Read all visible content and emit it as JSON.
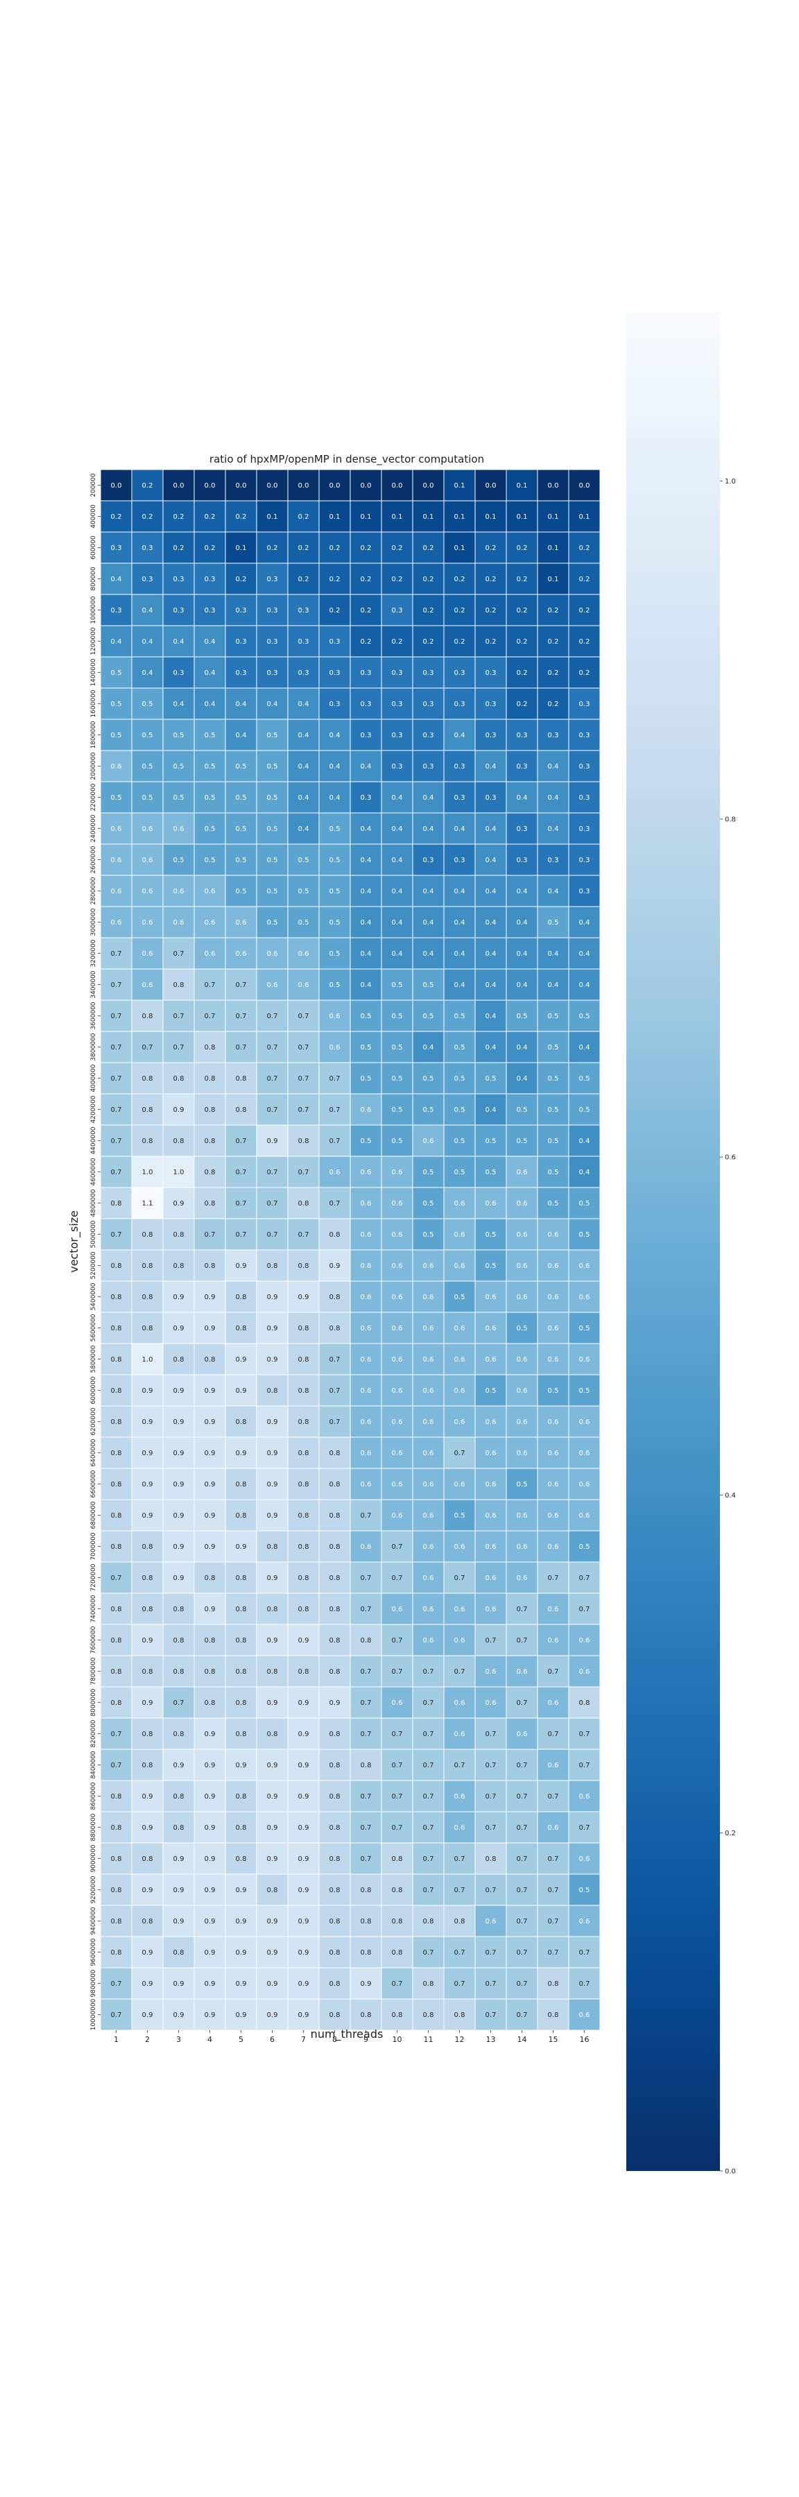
{
  "chart_data": {
    "type": "heatmap",
    "title": "ratio of hpxMP/openMP in dense_vector computation",
    "xlabel": "num_threads",
    "ylabel": "vector_size",
    "x_categories": [
      "1",
      "2",
      "3",
      "4",
      "5",
      "6",
      "7",
      "8",
      "9",
      "10",
      "11",
      "12",
      "13",
      "14",
      "15",
      "16"
    ],
    "y_categories": [
      "200000",
      "400000",
      "600000",
      "800000",
      "1000000",
      "1200000",
      "1400000",
      "1600000",
      "1800000",
      "2000000",
      "2200000",
      "2400000",
      "2600000",
      "2800000",
      "3000000",
      "3200000",
      "3400000",
      "3600000",
      "3800000",
      "4000000",
      "4200000",
      "4400000",
      "4600000",
      "4800000",
      "5000000",
      "5200000",
      "5400000",
      "5600000",
      "5800000",
      "6000000",
      "6200000",
      "6400000",
      "6600000",
      "6800000",
      "7000000",
      "7200000",
      "7400000",
      "7600000",
      "7800000",
      "8000000",
      "8200000",
      "8400000",
      "8600000",
      "8800000",
      "9000000",
      "9200000",
      "9400000",
      "9600000",
      "9800000",
      "10000000"
    ],
    "values": [
      [
        0.0,
        0.2,
        0.0,
        0.0,
        0.0,
        0.0,
        0.0,
        0.0,
        0.0,
        0.0,
        0.0,
        0.1,
        0.0,
        0.1,
        0.0,
        0.0
      ],
      [
        0.2,
        0.2,
        0.2,
        0.2,
        0.2,
        0.1,
        0.2,
        0.1,
        0.1,
        0.1,
        0.1,
        0.1,
        0.1,
        0.1,
        0.1,
        0.1
      ],
      [
        0.3,
        0.3,
        0.2,
        0.2,
        0.1,
        0.2,
        0.2,
        0.2,
        0.2,
        0.2,
        0.2,
        0.1,
        0.2,
        0.2,
        0.1,
        0.2
      ],
      [
        0.4,
        0.3,
        0.3,
        0.3,
        0.2,
        0.3,
        0.2,
        0.2,
        0.2,
        0.2,
        0.2,
        0.2,
        0.2,
        0.2,
        0.1,
        0.2
      ],
      [
        0.3,
        0.4,
        0.3,
        0.3,
        0.3,
        0.3,
        0.3,
        0.2,
        0.2,
        0.3,
        0.2,
        0.2,
        0.2,
        0.2,
        0.2,
        0.2
      ],
      [
        0.4,
        0.4,
        0.4,
        0.4,
        0.3,
        0.3,
        0.3,
        0.3,
        0.2,
        0.2,
        0.2,
        0.2,
        0.2,
        0.2,
        0.2,
        0.2
      ],
      [
        0.5,
        0.4,
        0.3,
        0.4,
        0.3,
        0.3,
        0.3,
        0.3,
        0.3,
        0.3,
        0.3,
        0.3,
        0.3,
        0.2,
        0.2,
        0.2
      ],
      [
        0.5,
        0.5,
        0.4,
        0.4,
        0.4,
        0.4,
        0.4,
        0.3,
        0.3,
        0.3,
        0.3,
        0.3,
        0.3,
        0.2,
        0.2,
        0.3
      ],
      [
        0.5,
        0.5,
        0.5,
        0.5,
        0.4,
        0.5,
        0.4,
        0.4,
        0.3,
        0.3,
        0.3,
        0.4,
        0.3,
        0.3,
        0.3,
        0.3
      ],
      [
        0.6,
        0.5,
        0.5,
        0.5,
        0.5,
        0.5,
        0.4,
        0.4,
        0.4,
        0.3,
        0.3,
        0.3,
        0.4,
        0.3,
        0.4,
        0.3
      ],
      [
        0.5,
        0.5,
        0.5,
        0.5,
        0.5,
        0.5,
        0.4,
        0.4,
        0.3,
        0.4,
        0.4,
        0.3,
        0.3,
        0.4,
        0.4,
        0.3
      ],
      [
        0.6,
        0.6,
        0.6,
        0.5,
        0.5,
        0.5,
        0.4,
        0.5,
        0.4,
        0.4,
        0.4,
        0.4,
        0.4,
        0.3,
        0.4,
        0.3
      ],
      [
        0.6,
        0.6,
        0.5,
        0.5,
        0.5,
        0.5,
        0.5,
        0.5,
        0.4,
        0.4,
        0.3,
        0.3,
        0.4,
        0.3,
        0.3,
        0.3
      ],
      [
        0.6,
        0.6,
        0.6,
        0.6,
        0.5,
        0.5,
        0.5,
        0.5,
        0.4,
        0.4,
        0.4,
        0.4,
        0.4,
        0.4,
        0.4,
        0.3
      ],
      [
        0.6,
        0.6,
        0.6,
        0.6,
        0.6,
        0.5,
        0.5,
        0.5,
        0.4,
        0.4,
        0.4,
        0.4,
        0.4,
        0.4,
        0.5,
        0.4
      ],
      [
        0.7,
        0.6,
        0.7,
        0.6,
        0.6,
        0.6,
        0.6,
        0.5,
        0.4,
        0.4,
        0.4,
        0.4,
        0.4,
        0.4,
        0.4,
        0.4
      ],
      [
        0.7,
        0.6,
        0.8,
        0.7,
        0.7,
        0.6,
        0.6,
        0.5,
        0.4,
        0.5,
        0.5,
        0.4,
        0.4,
        0.4,
        0.4,
        0.4
      ],
      [
        0.7,
        0.8,
        0.7,
        0.7,
        0.7,
        0.7,
        0.7,
        0.6,
        0.5,
        0.5,
        0.5,
        0.5,
        0.4,
        0.5,
        0.5,
        0.5
      ],
      [
        0.7,
        0.7,
        0.7,
        0.8,
        0.7,
        0.7,
        0.7,
        0.6,
        0.5,
        0.5,
        0.4,
        0.5,
        0.4,
        0.4,
        0.5,
        0.4
      ],
      [
        0.7,
        0.8,
        0.8,
        0.8,
        0.8,
        0.7,
        0.7,
        0.7,
        0.5,
        0.5,
        0.5,
        0.5,
        0.5,
        0.4,
        0.5,
        0.5
      ],
      [
        0.7,
        0.8,
        0.9,
        0.8,
        0.8,
        0.7,
        0.7,
        0.7,
        0.6,
        0.5,
        0.5,
        0.5,
        0.4,
        0.5,
        0.5,
        0.5
      ],
      [
        0.7,
        0.8,
        0.8,
        0.8,
        0.7,
        0.9,
        0.8,
        0.7,
        0.5,
        0.5,
        0.6,
        0.5,
        0.5,
        0.5,
        0.5,
        0.4
      ],
      [
        0.7,
        1.0,
        1.0,
        0.8,
        0.7,
        0.7,
        0.7,
        0.6,
        0.6,
        0.6,
        0.5,
        0.5,
        0.5,
        0.6,
        0.5,
        0.4
      ],
      [
        0.8,
        1.1,
        0.9,
        0.8,
        0.7,
        0.7,
        0.8,
        0.7,
        0.6,
        0.6,
        0.5,
        0.6,
        0.6,
        0.6,
        0.5,
        0.5
      ],
      [
        0.7,
        0.8,
        0.8,
        0.7,
        0.7,
        0.7,
        0.7,
        0.8,
        0.6,
        0.6,
        0.5,
        0.6,
        0.5,
        0.6,
        0.6,
        0.5
      ],
      [
        0.8,
        0.8,
        0.8,
        0.8,
        0.9,
        0.8,
        0.8,
        0.9,
        0.6,
        0.6,
        0.6,
        0.6,
        0.5,
        0.6,
        0.6,
        0.6
      ],
      [
        0.8,
        0.8,
        0.9,
        0.9,
        0.8,
        0.9,
        0.9,
        0.8,
        0.6,
        0.6,
        0.6,
        0.5,
        0.6,
        0.6,
        0.6,
        0.6
      ],
      [
        0.8,
        0.8,
        0.9,
        0.9,
        0.8,
        0.9,
        0.8,
        0.8,
        0.6,
        0.6,
        0.6,
        0.6,
        0.6,
        0.5,
        0.6,
        0.5
      ],
      [
        0.8,
        1.0,
        0.8,
        0.8,
        0.9,
        0.9,
        0.8,
        0.7,
        0.6,
        0.6,
        0.6,
        0.6,
        0.6,
        0.6,
        0.6,
        0.6
      ],
      [
        0.8,
        0.9,
        0.9,
        0.9,
        0.9,
        0.8,
        0.8,
        0.7,
        0.6,
        0.6,
        0.6,
        0.6,
        0.5,
        0.6,
        0.5,
        0.5
      ],
      [
        0.8,
        0.9,
        0.9,
        0.9,
        0.8,
        0.9,
        0.8,
        0.7,
        0.6,
        0.6,
        0.6,
        0.6,
        0.6,
        0.6,
        0.6,
        0.6
      ],
      [
        0.8,
        0.9,
        0.9,
        0.9,
        0.9,
        0.9,
        0.8,
        0.8,
        0.6,
        0.6,
        0.6,
        0.7,
        0.6,
        0.6,
        0.6,
        0.6
      ],
      [
        0.8,
        0.9,
        0.9,
        0.9,
        0.8,
        0.9,
        0.8,
        0.8,
        0.6,
        0.6,
        0.6,
        0.6,
        0.6,
        0.5,
        0.6,
        0.6
      ],
      [
        0.8,
        0.9,
        0.9,
        0.9,
        0.8,
        0.9,
        0.8,
        0.8,
        0.7,
        0.6,
        0.6,
        0.5,
        0.6,
        0.6,
        0.6,
        0.6
      ],
      [
        0.8,
        0.8,
        0.9,
        0.9,
        0.9,
        0.8,
        0.8,
        0.8,
        0.6,
        0.7,
        0.6,
        0.6,
        0.6,
        0.6,
        0.6,
        0.5
      ],
      [
        0.7,
        0.8,
        0.9,
        0.8,
        0.8,
        0.9,
        0.8,
        0.8,
        0.7,
        0.7,
        0.6,
        0.7,
        0.6,
        0.6,
        0.7,
        0.7
      ],
      [
        0.8,
        0.8,
        0.8,
        0.9,
        0.8,
        0.8,
        0.8,
        0.8,
        0.7,
        0.6,
        0.6,
        0.6,
        0.6,
        0.7,
        0.6,
        0.7
      ],
      [
        0.8,
        0.9,
        0.8,
        0.8,
        0.8,
        0.9,
        0.9,
        0.8,
        0.8,
        0.7,
        0.6,
        0.6,
        0.7,
        0.7,
        0.6,
        0.6
      ],
      [
        0.8,
        0.8,
        0.8,
        0.8,
        0.8,
        0.8,
        0.8,
        0.8,
        0.7,
        0.7,
        0.7,
        0.7,
        0.6,
        0.6,
        0.7,
        0.6
      ],
      [
        0.8,
        0.9,
        0.7,
        0.8,
        0.8,
        0.9,
        0.9,
        0.9,
        0.7,
        0.6,
        0.7,
        0.6,
        0.6,
        0.7,
        0.6,
        0.8
      ],
      [
        0.7,
        0.8,
        0.8,
        0.9,
        0.8,
        0.8,
        0.9,
        0.8,
        0.7,
        0.7,
        0.7,
        0.6,
        0.7,
        0.6,
        0.7,
        0.7
      ],
      [
        0.7,
        0.8,
        0.9,
        0.9,
        0.9,
        0.9,
        0.9,
        0.8,
        0.8,
        0.7,
        0.7,
        0.7,
        0.7,
        0.7,
        0.6,
        0.7
      ],
      [
        0.8,
        0.9,
        0.8,
        0.9,
        0.8,
        0.9,
        0.9,
        0.8,
        0.7,
        0.7,
        0.7,
        0.6,
        0.7,
        0.7,
        0.7,
        0.6
      ],
      [
        0.8,
        0.9,
        0.8,
        0.9,
        0.8,
        0.9,
        0.9,
        0.8,
        0.7,
        0.7,
        0.7,
        0.6,
        0.7,
        0.7,
        0.6,
        0.7
      ],
      [
        0.8,
        0.8,
        0.9,
        0.9,
        0.8,
        0.9,
        0.9,
        0.8,
        0.7,
        0.8,
        0.7,
        0.7,
        0.8,
        0.7,
        0.7,
        0.6
      ],
      [
        0.8,
        0.9,
        0.9,
        0.9,
        0.9,
        0.8,
        0.9,
        0.8,
        0.8,
        0.8,
        0.7,
        0.7,
        0.7,
        0.7,
        0.7,
        0.5
      ],
      [
        0.8,
        0.8,
        0.9,
        0.9,
        0.9,
        0.9,
        0.9,
        0.8,
        0.8,
        0.8,
        0.8,
        0.8,
        0.6,
        0.7,
        0.7,
        0.6
      ],
      [
        0.8,
        0.9,
        0.8,
        0.9,
        0.9,
        0.9,
        0.9,
        0.8,
        0.8,
        0.8,
        0.7,
        0.7,
        0.7,
        0.7,
        0.7,
        0.7
      ],
      [
        0.7,
        0.9,
        0.9,
        0.9,
        0.9,
        0.9,
        0.9,
        0.8,
        0.9,
        0.7,
        0.8,
        0.7,
        0.7,
        0.7,
        0.8,
        0.7
      ],
      [
        0.7,
        0.9,
        0.9,
        0.9,
        0.9,
        0.9,
        0.9,
        0.8,
        0.8,
        0.8,
        0.8,
        0.8,
        0.7,
        0.7,
        0.8,
        0.6
      ]
    ],
    "colorbar": {
      "range": [
        0.0,
        1.1
      ],
      "ticks": [
        "0.0",
        "0.2",
        "0.4",
        "0.6",
        "0.8",
        "1.0"
      ],
      "colormap": "Blues_r"
    },
    "grid": false
  }
}
